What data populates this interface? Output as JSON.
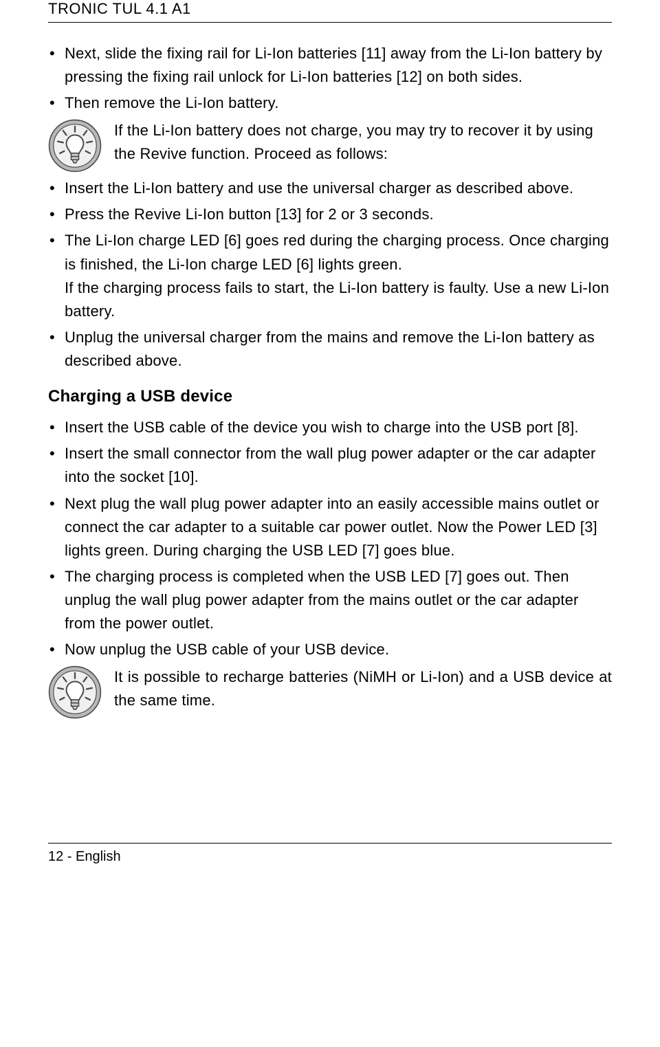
{
  "header": {
    "title": "TRONIC TUL 4.1 A1"
  },
  "section1": {
    "bullets_a": [
      "Next, slide the fixing rail for Li-Ion batteries [11] away from the Li-Ion battery by pressing the fixing rail unlock for Li-Ion batteries [12] on both sides.",
      "Then remove the Li-Ion battery."
    ],
    "tip": "If the Li-Ion battery does not charge, you may try to recover it by using the Revive function. Proceed as follows:",
    "bullets_b": [
      "Insert the Li-Ion battery and use the universal charger as described above.",
      "Press the Revive Li-Ion button [13] for 2 or 3 seconds.",
      "The Li-Ion charge LED [6] goes red during the charging process. Once charging is finished, the Li-Ion charge LED [6] lights green.\nIf the charging process fails to start, the Li-Ion battery is faulty. Use a new Li-Ion battery.",
      "Unplug the universal charger from the mains and remove the Li-Ion battery as described above."
    ]
  },
  "section2": {
    "heading": "Charging a USB device",
    "bullets": [
      "Insert the USB cable of the device you wish to charge into the USB port [8].",
      "Insert the small connector from the wall plug power adapter or the car adapter into the socket [10].",
      "Next plug the wall plug power adapter into an easily accessible mains outlet or connect the car adapter to a suitable car power outlet. Now the Power LED [3] lights green. During charging the USB LED [7] goes blue.",
      "The charging process is completed when the USB LED [7] goes out. Then unplug the wall plug power adapter from the mains outlet or the car adapter from the power outlet.",
      "Now unplug the USB cable of your USB device."
    ],
    "tip": "It is possible to recharge batteries (NiMH or Li-Ion) and a USB device at the same time."
  },
  "footer": {
    "page": "12 - English"
  },
  "icon": {
    "stroke": "#4a4a4a",
    "fill_outer": "#b8b8b8",
    "fill_inner": "#f0f0f0"
  }
}
